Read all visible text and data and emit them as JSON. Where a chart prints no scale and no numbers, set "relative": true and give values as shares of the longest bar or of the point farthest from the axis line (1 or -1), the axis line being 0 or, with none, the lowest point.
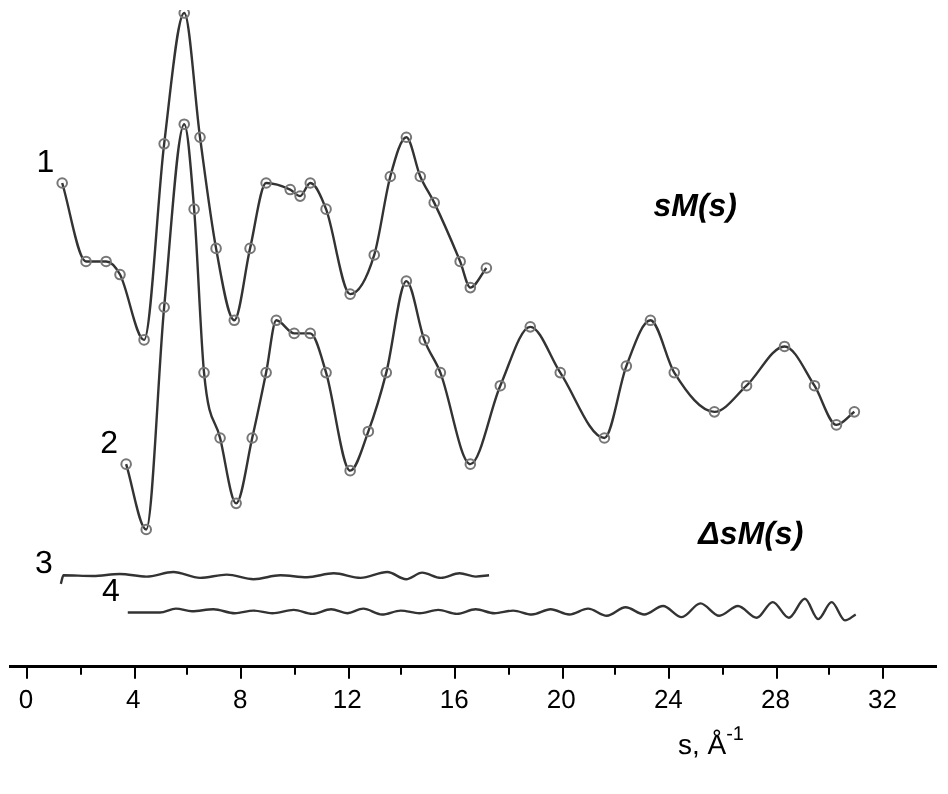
{
  "chart_data": {
    "type": "line",
    "relative": true,
    "xlabel": "s, Å$^{-1}$",
    "xlim": [
      -0.6,
      34
    ],
    "xticks": [
      0,
      {
        "value": 2,
        "label": null
      },
      4,
      {
        "value": 6,
        "label": null
      },
      8,
      {
        "value": 10,
        "label": null
      },
      12,
      {
        "value": 14,
        "label": null
      },
      16,
      {
        "value": 18,
        "label": null
      },
      20,
      {
        "value": 22,
        "label": null
      },
      24,
      {
        "value": 26,
        "label": null
      },
      28,
      {
        "value": 30,
        "label": null
      },
      32
    ],
    "legend": false,
    "annotations": [
      "sM(s)",
      "ΔsM(s)"
    ],
    "series": [
      {
        "name": "1",
        "color": "#333333",
        "marker": "circle",
        "x": [
          1.35,
          2.24,
          2.99,
          3.51,
          4.41,
          5.16,
          5.91,
          6.5,
          7.1,
          7.78,
          8.37,
          8.97,
          9.87,
          10.24,
          10.62,
          11.21,
          12.11,
          13.01,
          13.61,
          14.21,
          14.73,
          15.25,
          16.22,
          16.6,
          17.2
        ],
        "values": [
          0.74,
          0.62,
          0.62,
          0.6,
          0.5,
          0.8,
          1.0,
          0.81,
          0.64,
          0.53,
          0.64,
          0.74,
          0.73,
          0.72,
          0.74,
          0.7,
          0.57,
          0.63,
          0.75,
          0.81,
          0.75,
          0.71,
          0.62,
          0.58,
          0.61
        ]
      },
      {
        "name": "2",
        "color": "#333333",
        "marker": "circle",
        "x": [
          3.74,
          4.49,
          5.16,
          5.91,
          6.28,
          6.65,
          7.25,
          7.85,
          8.45,
          8.97,
          9.35,
          10.02,
          10.62,
          11.21,
          12.11,
          12.79,
          13.46,
          14.21,
          14.88,
          15.48,
          16.6,
          17.72,
          18.84,
          19.96,
          21.61,
          22.43,
          23.33,
          24.22,
          25.72,
          26.92,
          28.34,
          29.46,
          30.28,
          30.95
        ],
        "values": [
          0.31,
          0.21,
          0.55,
          0.83,
          0.7,
          0.45,
          0.35,
          0.25,
          0.35,
          0.45,
          0.53,
          0.51,
          0.51,
          0.45,
          0.3,
          0.36,
          0.45,
          0.59,
          0.5,
          0.45,
          0.31,
          0.43,
          0.52,
          0.45,
          0.35,
          0.46,
          0.53,
          0.45,
          0.39,
          0.43,
          0.49,
          0.43,
          0.37,
          0.39
        ]
      },
      {
        "name": "3",
        "color": "#333333",
        "marker": "none",
        "x": [
          1.3,
          1.4,
          2.5,
          3.5,
          4.5,
          5.5,
          6.5,
          7.5,
          8.5,
          9.5,
          10.5,
          11.5,
          12.5,
          13.5,
          14.2,
          14.8,
          15.5,
          16.2,
          16.8,
          17.3
        ],
        "values": [
          0.127,
          0.14,
          0.139,
          0.142,
          0.138,
          0.145,
          0.136,
          0.141,
          0.134,
          0.14,
          0.137,
          0.143,
          0.136,
          0.145,
          0.134,
          0.144,
          0.136,
          0.143,
          0.138,
          0.14
        ]
      },
      {
        "name": "4",
        "color": "#333333",
        "marker": "none",
        "x": [
          3.8,
          5,
          5.6,
          6.2,
          7,
          7.8,
          8.5,
          9.2,
          10,
          10.7,
          11.4,
          12,
          12.6,
          13.3,
          14,
          14.7,
          15.4,
          16.1,
          16.8,
          17.5,
          18.2,
          18.9,
          19.6,
          20.3,
          21,
          21.7,
          22.4,
          23.1,
          23.8,
          24.5,
          25.2,
          25.9,
          26.6,
          27.3,
          27.9,
          28.5,
          29.1,
          29.6,
          30.1,
          30.6,
          31
        ],
        "values": [
          0.083,
          0.083,
          0.089,
          0.085,
          0.088,
          0.082,
          0.086,
          0.082,
          0.087,
          0.081,
          0.088,
          0.082,
          0.089,
          0.08,
          0.086,
          0.082,
          0.087,
          0.081,
          0.088,
          0.082,
          0.086,
          0.08,
          0.088,
          0.08,
          0.089,
          0.078,
          0.091,
          0.08,
          0.093,
          0.076,
          0.097,
          0.078,
          0.093,
          0.075,
          0.099,
          0.075,
          0.104,
          0.073,
          0.099,
          0.071,
          0.08
        ]
      }
    ]
  }
}
